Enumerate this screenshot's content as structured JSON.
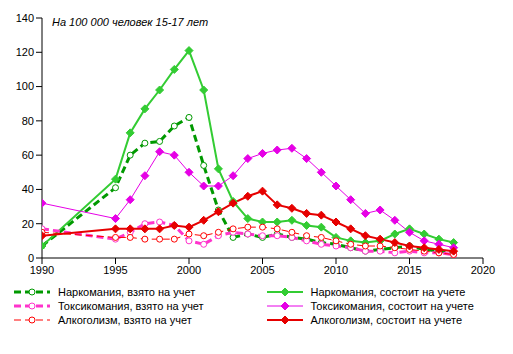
{
  "chart_data": {
    "type": "line",
    "title": "На 100 000 человек 15-17 лет",
    "x": [
      1990,
      1995,
      1996,
      1997,
      1998,
      1999,
      2000,
      2001,
      2002,
      2003,
      2004,
      2005,
      2006,
      2007,
      2008,
      2009,
      2010,
      2011,
      2012,
      2013,
      2014,
      2015,
      2016,
      2017,
      2018
    ],
    "xlim": [
      1990,
      2020
    ],
    "xticks": [
      1990,
      1995,
      2000,
      2005,
      2010,
      2015,
      2020
    ],
    "ylim": [
      0,
      140
    ],
    "yticks": [
      0,
      20,
      40,
      60,
      80,
      100,
      120,
      140
    ],
    "grid": false,
    "legend": "bottom",
    "series": [
      {
        "name": "Наркомания, взято на учет",
        "color": "#009900",
        "line_style": "dashed",
        "marker": "circle",
        "values": [
          7,
          41,
          60,
          67,
          68,
          77,
          82,
          54,
          28,
          12,
          14,
          12,
          14,
          12,
          11,
          9,
          8,
          6,
          4,
          5,
          6,
          7,
          5,
          4,
          3
        ]
      },
      {
        "name": "Наркомания, состоит на учете",
        "color": "#33cc33",
        "line_style": "solid",
        "marker": "diamond",
        "values": [
          7,
          46,
          73,
          87,
          98,
          110,
          121,
          98,
          52,
          33,
          23,
          21,
          21,
          22,
          19,
          18,
          12,
          10,
          9,
          10,
          14,
          17,
          14,
          11,
          9
        ]
      },
      {
        "name": "Токсикомания, взято на учет",
        "color": "#ff33cc",
        "line_style": "dashed",
        "marker": "circle",
        "values": [
          17,
          11,
          15,
          20,
          21,
          19,
          10,
          8,
          13,
          15,
          14,
          13,
          13,
          12,
          10,
          8,
          7,
          6,
          4,
          4,
          3,
          4,
          3,
          3,
          2
        ]
      },
      {
        "name": "Токсикомания, состоит на учете",
        "color": "#e600e6",
        "line_style": "solid",
        "marker": "diamond",
        "values": [
          32,
          23,
          34,
          48,
          62,
          60,
          50,
          42,
          42,
          48,
          58,
          61,
          63,
          64,
          58,
          50,
          42,
          34,
          26,
          28,
          22,
          15,
          10,
          8,
          6
        ]
      },
      {
        "name": "Алкоголизм, взято на учет",
        "color": "#ff0000",
        "line_style": "dashed",
        "marker": "circle",
        "values": [
          15,
          12,
          12,
          11,
          11,
          11,
          14,
          13,
          15,
          17,
          18,
          18,
          17,
          15,
          13,
          12,
          10,
          8,
          7,
          7,
          6,
          5,
          4,
          3,
          2
        ]
      },
      {
        "name": "Алкоголизм, состоит на учете",
        "color": "#e60000",
        "line_style": "solid",
        "marker": "diamond",
        "values": [
          13,
          17,
          17,
          17,
          17,
          19,
          18,
          22,
          27,
          32,
          36,
          39,
          31,
          29,
          26,
          25,
          21,
          17,
          13,
          11,
          9,
          7,
          6,
          5,
          4
        ]
      }
    ]
  }
}
